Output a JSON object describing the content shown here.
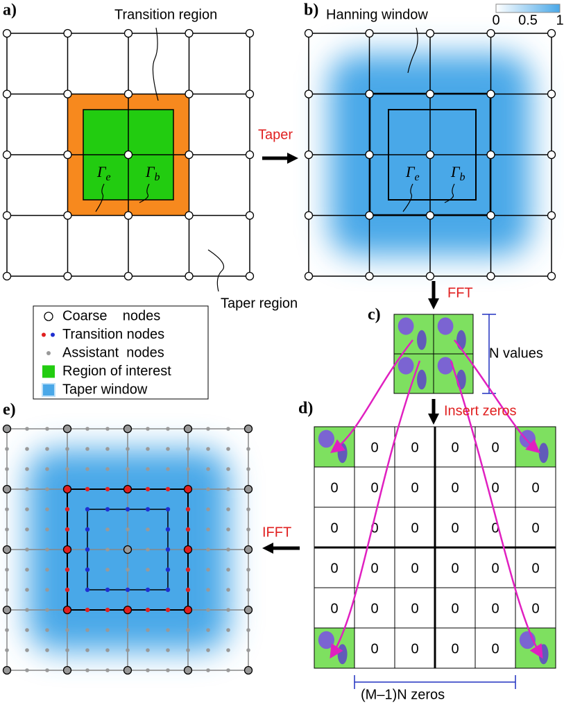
{
  "panels": {
    "a": "a)",
    "b": "b)",
    "c": "c)",
    "d": "d)",
    "e": "e)"
  },
  "annotations": {
    "transition_region": "Transition region",
    "hanning_window": "Hanning window",
    "taper_region": "Taper region",
    "gamma_e": {
      "symbol": "Γ",
      "subscript": "e"
    },
    "gamma_b": {
      "symbol": "Γ",
      "subscript": "b"
    },
    "n_values": "N values",
    "zeros_span": "(M–1)N zeros"
  },
  "colorbar": {
    "ticks": [
      0,
      0.5,
      1
    ]
  },
  "steps": {
    "taper": "Taper",
    "fft": "FFT",
    "insert_zeros": "Insert zeros",
    "ifft": "IFFT"
  },
  "legend": [
    "Coarse    nodes",
    "Transition nodes",
    "Assistant  nodes",
    "Region of interest",
    "Taper window"
  ],
  "zero_grid": {
    "rows": [
      [
        null,
        0,
        0,
        0,
        0,
        null
      ],
      [
        0,
        0,
        0,
        0,
        0,
        0
      ],
      [
        0,
        0,
        0,
        0,
        0,
        0
      ],
      [
        0,
        0,
        0,
        0,
        0,
        0
      ],
      [
        0,
        0,
        0,
        0,
        0,
        0
      ],
      [
        null,
        0,
        0,
        0,
        0,
        null
      ]
    ]
  }
}
